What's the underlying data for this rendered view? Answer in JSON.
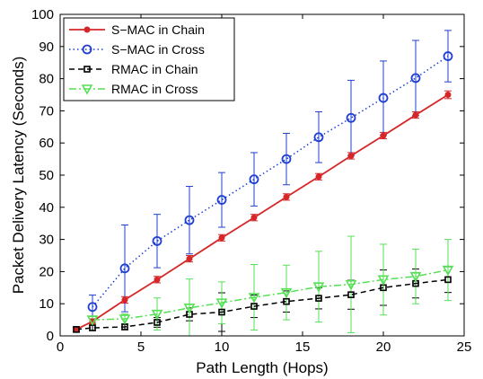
{
  "chart_data": {
    "type": "line",
    "xlabel": "Path Length (Hops)",
    "ylabel": "Packet Delivery Latency (Seconds)",
    "xlim": [
      0,
      25
    ],
    "ylim": [
      0,
      100
    ],
    "xticks": [
      0,
      5,
      10,
      15,
      20,
      25
    ],
    "yticks": [
      0,
      10,
      20,
      30,
      40,
      50,
      60,
      70,
      80,
      90,
      100
    ],
    "grid": false,
    "legend_position": "top-left",
    "series": [
      {
        "name": "S−MAC in Chain",
        "color": "#d62728",
        "line_style": "solid",
        "marker": "filled-circle",
        "x": [
          1,
          2,
          4,
          6,
          8,
          10,
          12,
          14,
          16,
          18,
          20,
          22,
          24
        ],
        "y": [
          2,
          4.5,
          11.2,
          17.5,
          24,
          30.5,
          36.8,
          43.2,
          49.5,
          56,
          62.3,
          68.7,
          75
        ],
        "err": [
          0.8,
          0.8,
          1,
          1,
          1,
          1,
          1,
          1,
          1,
          1,
          1,
          1,
          1.2
        ]
      },
      {
        "name": "S−MAC in Cross",
        "color": "#1f3fd0",
        "line_style": "dotted",
        "marker": "open-circle",
        "x": [
          2,
          4,
          6,
          8,
          10,
          12,
          14,
          16,
          18,
          20,
          22,
          24
        ],
        "y": [
          9,
          21,
          29.5,
          36,
          42.3,
          48.7,
          55,
          61.8,
          67.8,
          74,
          80.2,
          87
        ],
        "err": [
          3.7,
          13.5,
          8.3,
          10.5,
          8.5,
          8.3,
          8,
          7.9,
          11.7,
          11.5,
          11.7,
          8
        ]
      },
      {
        "name": "RMAC in Chain",
        "color": "#000000",
        "line_style": "dashed",
        "marker": "open-square",
        "x": [
          1,
          2,
          4,
          6,
          8,
          10,
          12,
          14,
          16,
          18,
          20,
          22,
          24
        ],
        "y": [
          2,
          2.5,
          2.8,
          4.2,
          6.7,
          7.4,
          9.2,
          10.7,
          11.7,
          12.8,
          15,
          16.3,
          17.5
        ],
        "err": [
          0.8,
          0.8,
          0.9,
          1.5,
          2,
          6,
          3.5,
          3.3,
          3.3,
          4.5,
          5.5,
          4.5,
          4
        ]
      },
      {
        "name": "RMAC in Cross",
        "color": "#55e055",
        "line_style": "dashdot",
        "marker": "open-triangle-down",
        "x": [
          2,
          4,
          6,
          8,
          10,
          12,
          14,
          16,
          18,
          20,
          22,
          24
        ],
        "y": [
          5,
          5.3,
          6.8,
          8.7,
          10.3,
          12,
          13.5,
          15.3,
          16,
          17.5,
          18.5,
          20.5
        ],
        "err": [
          1,
          1.5,
          5,
          9,
          6.5,
          10.2,
          8.5,
          11,
          15,
          11,
          8.5,
          9.5
        ]
      }
    ]
  }
}
